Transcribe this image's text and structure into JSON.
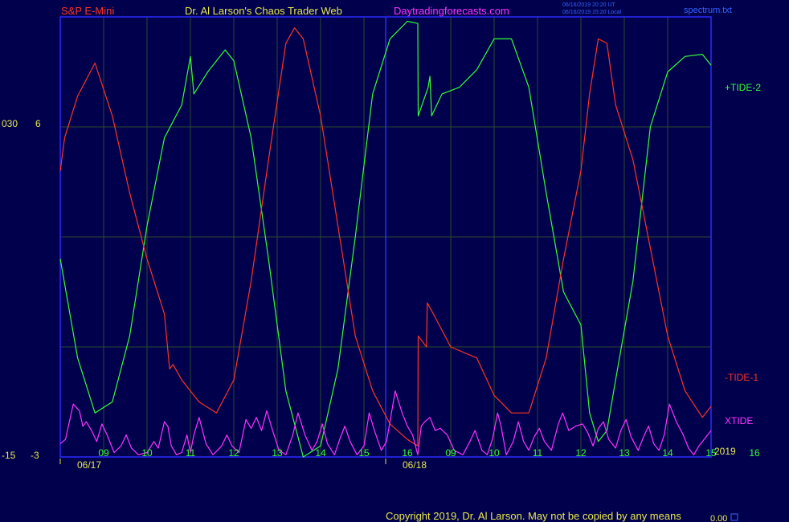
{
  "header": {
    "symbol": "S&P E-Mini",
    "title": "Dr. Al Larson's Chaos Trader Web",
    "site": "Daytradingforecasts.com",
    "timestamp_ut": "06/16/2019 20:20 UT",
    "timestamp_local": "06/16/2019 15:20 Local",
    "file": "spectrum.txt"
  },
  "footer": {
    "copyright": "Copyright 2019, Dr. Al Larson. May not be copied by any means",
    "corner_value": "0.00"
  },
  "axes": {
    "left_upper_a": "030",
    "left_upper_b": "6",
    "left_lower_a": "-15",
    "left_lower_b": "-3",
    "year": "2019"
  },
  "colors": {
    "background": "#00004d",
    "frame": "#2a2aff",
    "grid": "#2b4a2b",
    "tide_plus": "#33ff33",
    "tide_minus": "#ff3322",
    "xtide": "#ff33ff",
    "hour_labels": "#33ff33",
    "date_labels": "#e8e84a",
    "header_symbol": "#ff3322",
    "header_title": "#e8e84a",
    "header_site": "#ff33ff",
    "header_meta": "#3366ff"
  },
  "chart_data": {
    "type": "line",
    "x_hours": [
      9,
      10,
      11,
      12,
      13,
      14,
      15,
      16,
      9,
      10,
      11,
      12,
      13,
      14,
      15,
      16
    ],
    "x_dates": [
      "06/17",
      "06/18"
    ],
    "series": [
      {
        "name": "+TIDE-2",
        "color": "#33ff33",
        "points": [
          [
            0,
            -0.1
          ],
          [
            2,
            -0.55
          ],
          [
            4,
            -0.8
          ],
          [
            6,
            -0.75
          ],
          [
            8,
            -0.45
          ],
          [
            10,
            0.05
          ],
          [
            12,
            0.45
          ],
          [
            14,
            0.6
          ],
          [
            15,
            0.82
          ],
          [
            15.4,
            0.65
          ],
          [
            17,
            0.75
          ],
          [
            19,
            0.85
          ],
          [
            20,
            0.8
          ],
          [
            22,
            0.45
          ],
          [
            24,
            -0.1
          ],
          [
            26,
            -0.7
          ],
          [
            28,
            -1.0
          ],
          [
            30,
            -0.95
          ],
          [
            32,
            -0.6
          ],
          [
            34,
            0.0
          ],
          [
            36,
            0.65
          ],
          [
            38,
            0.9
          ],
          [
            40,
            0.98
          ],
          [
            41.2,
            0.97
          ],
          [
            41.25,
            0.55
          ],
          [
            42.4,
            0.68
          ],
          [
            42.6,
            0.73
          ],
          [
            42.8,
            0.55
          ],
          [
            44,
            0.65
          ],
          [
            46,
            0.68
          ],
          [
            48,
            0.76
          ],
          [
            50,
            0.9
          ],
          [
            52,
            0.9
          ],
          [
            54,
            0.68
          ],
          [
            56,
            0.2
          ],
          [
            58,
            -0.25
          ],
          [
            60,
            -0.4
          ],
          [
            61,
            -0.8
          ],
          [
            62,
            -0.93
          ],
          [
            63,
            -0.88
          ],
          [
            64,
            -0.65
          ],
          [
            66,
            -0.2
          ],
          [
            68,
            0.5
          ],
          [
            70,
            0.75
          ],
          [
            72,
            0.82
          ],
          [
            74,
            0.83
          ],
          [
            75,
            0.78
          ]
        ]
      },
      {
        "name": "-TIDE-1",
        "color": "#ff3322",
        "points": [
          [
            0,
            0.3
          ],
          [
            0.5,
            0.45
          ],
          [
            2,
            0.64
          ],
          [
            4,
            0.79
          ],
          [
            6,
            0.55
          ],
          [
            8,
            0.2
          ],
          [
            10,
            -0.1
          ],
          [
            12,
            -0.35
          ],
          [
            12.6,
            -0.6
          ],
          [
            13,
            -0.58
          ],
          [
            14,
            -0.65
          ],
          [
            16,
            -0.75
          ],
          [
            18,
            -0.8
          ],
          [
            20,
            -0.65
          ],
          [
            22,
            -0.2
          ],
          [
            24,
            0.35
          ],
          [
            26,
            0.88
          ],
          [
            27,
            0.95
          ],
          [
            28,
            0.9
          ],
          [
            30,
            0.55
          ],
          [
            32,
            0.05
          ],
          [
            34,
            -0.45
          ],
          [
            36,
            -0.7
          ],
          [
            38,
            -0.85
          ],
          [
            40,
            -0.92
          ],
          [
            41.2,
            -0.95
          ],
          [
            41.25,
            -0.45
          ],
          [
            42.2,
            -0.5
          ],
          [
            42.3,
            -0.3
          ],
          [
            43,
            -0.35
          ],
          [
            45,
            -0.5
          ],
          [
            48,
            -0.55
          ],
          [
            50,
            -0.72
          ],
          [
            52,
            -0.8
          ],
          [
            54,
            -0.8
          ],
          [
            56,
            -0.55
          ],
          [
            58,
            -0.1
          ],
          [
            60,
            0.3
          ],
          [
            61,
            0.65
          ],
          [
            62,
            0.9
          ],
          [
            63,
            0.88
          ],
          [
            64,
            0.6
          ],
          [
            66,
            0.35
          ],
          [
            68,
            -0.05
          ],
          [
            70,
            -0.45
          ],
          [
            72,
            -0.7
          ],
          [
            74,
            -0.82
          ],
          [
            75,
            -0.77
          ]
        ]
      },
      {
        "name": "XTIDE",
        "color": "#ff33ff",
        "points": [
          [
            0,
            -0.94
          ],
          [
            0.6,
            -0.92
          ],
          [
            1.5,
            -0.76
          ],
          [
            2.2,
            -0.79
          ],
          [
            2.6,
            -0.86
          ],
          [
            3.0,
            -0.84
          ],
          [
            3.6,
            -0.88
          ],
          [
            4.2,
            -0.93
          ],
          [
            4.8,
            -0.85
          ],
          [
            5.4,
            -0.9
          ],
          [
            6.2,
            -0.98
          ],
          [
            7.0,
            -0.95
          ],
          [
            7.6,
            -0.9
          ],
          [
            8.2,
            -0.96
          ],
          [
            9.0,
            -0.99
          ],
          [
            10.0,
            -0.98
          ],
          [
            10.8,
            -0.93
          ],
          [
            11.3,
            -0.96
          ],
          [
            12.0,
            -0.84
          ],
          [
            12.4,
            -0.86
          ],
          [
            12.8,
            -0.95
          ],
          [
            13.4,
            -0.99
          ],
          [
            14.0,
            -0.98
          ],
          [
            14.6,
            -0.9
          ],
          [
            15.0,
            -0.98
          ],
          [
            15.4,
            -0.9
          ],
          [
            16.0,
            -0.82
          ],
          [
            16.8,
            -0.94
          ],
          [
            17.6,
            -0.99
          ],
          [
            18.6,
            -0.95
          ],
          [
            19.2,
            -0.9
          ],
          [
            19.8,
            -0.95
          ],
          [
            20.6,
            -0.98
          ],
          [
            21.4,
            -0.83
          ],
          [
            22.0,
            -0.87
          ],
          [
            22.6,
            -0.82
          ],
          [
            23.2,
            -0.88
          ],
          [
            23.8,
            -0.79
          ],
          [
            24.4,
            -0.87
          ],
          [
            25.2,
            -0.97
          ],
          [
            26.0,
            -0.99
          ],
          [
            26.8,
            -0.9
          ],
          [
            27.4,
            -0.8
          ],
          [
            28.2,
            -0.9
          ],
          [
            29.0,
            -0.97
          ],
          [
            29.6,
            -0.93
          ],
          [
            30.2,
            -0.85
          ],
          [
            30.8,
            -0.94
          ],
          [
            31.6,
            -0.99
          ],
          [
            32.2,
            -0.92
          ],
          [
            32.8,
            -0.86
          ],
          [
            33.4,
            -0.93
          ],
          [
            34.2,
            -0.99
          ],
          [
            35.0,
            -0.95
          ],
          [
            35.6,
            -0.8
          ],
          [
            36.2,
            -0.88
          ],
          [
            37.0,
            -0.97
          ],
          [
            37.6,
            -0.93
          ],
          [
            38.6,
            -0.7
          ],
          [
            39.4,
            -0.8
          ],
          [
            40.0,
            -0.86
          ],
          [
            40.6,
            -0.9
          ],
          [
            41.2,
            -0.99
          ],
          [
            41.6,
            -0.86
          ],
          [
            42.0,
            -0.84
          ],
          [
            42.6,
            -0.82
          ],
          [
            43.2,
            -0.88
          ],
          [
            43.8,
            -0.87
          ],
          [
            44.6,
            -0.9
          ],
          [
            45.4,
            -0.97
          ],
          [
            46.4,
            -0.99
          ],
          [
            47.2,
            -0.93
          ],
          [
            47.8,
            -0.88
          ],
          [
            48.6,
            -0.97
          ],
          [
            49.2,
            -0.99
          ],
          [
            49.8,
            -0.92
          ],
          [
            50.4,
            -0.8
          ],
          [
            50.8,
            -0.86
          ],
          [
            51.4,
            -0.99
          ],
          [
            52.2,
            -0.93
          ],
          [
            52.8,
            -0.84
          ],
          [
            53.4,
            -0.93
          ],
          [
            54.0,
            -0.97
          ],
          [
            54.6,
            -0.91
          ],
          [
            55.2,
            -0.87
          ],
          [
            55.8,
            -0.93
          ],
          [
            56.6,
            -0.97
          ],
          [
            57.4,
            -0.85
          ],
          [
            57.9,
            -0.8
          ],
          [
            58.6,
            -0.88
          ],
          [
            59.4,
            -0.86
          ],
          [
            60.2,
            -0.85
          ],
          [
            60.8,
            -0.89
          ],
          [
            61.4,
            -0.95
          ],
          [
            62.0,
            -0.87
          ],
          [
            62.6,
            -0.84
          ],
          [
            63.2,
            -0.92
          ],
          [
            64.0,
            -0.96
          ],
          [
            64.6,
            -0.88
          ],
          [
            65.2,
            -0.83
          ],
          [
            65.8,
            -0.91
          ],
          [
            66.6,
            -0.97
          ],
          [
            67.2,
            -0.91
          ],
          [
            67.8,
            -0.86
          ],
          [
            68.4,
            -0.94
          ],
          [
            69.0,
            -0.97
          ],
          [
            69.6,
            -0.9
          ],
          [
            70.2,
            -0.76
          ],
          [
            71.0,
            -0.84
          ],
          [
            71.8,
            -0.9
          ],
          [
            72.4,
            -0.96
          ],
          [
            73.0,
            -0.99
          ],
          [
            73.6,
            -0.95
          ],
          [
            74.2,
            -0.92
          ],
          [
            75.0,
            -0.88
          ]
        ]
      }
    ],
    "xlim": [
      0,
      75
    ],
    "ylim": [
      -1,
      1
    ],
    "grid": true,
    "legend": "right"
  }
}
